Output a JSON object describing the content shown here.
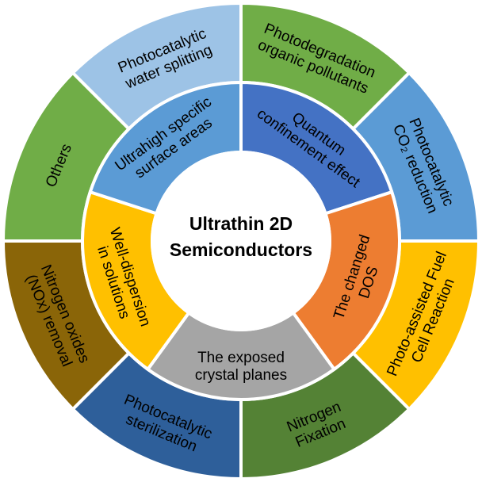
{
  "center": {
    "line1": "Ultrathin 2D",
    "line2": "Semiconductors"
  },
  "inner_ring": [
    {
      "lines": [
        "Quantum",
        "confinement effect"
      ],
      "color": "#4472c4"
    },
    {
      "lines": [
        "The changed",
        "DOS"
      ],
      "color": "#ed7d31"
    },
    {
      "lines": [
        "The exposed",
        "crystal planes"
      ],
      "color": "#a5a5a5"
    },
    {
      "lines": [
        "Well-dispersion",
        "in solutions"
      ],
      "color": "#ffc000"
    },
    {
      "lines": [
        "Ultrahigh specific",
        "surface areas"
      ],
      "color": "#5b9bd5"
    }
  ],
  "outer_ring": [
    {
      "lines": [
        "Photodegradation",
        "organic pollutants"
      ],
      "color": "#70ad47"
    },
    {
      "lines": [
        "Photocatalytic",
        "CO₂ reduction"
      ],
      "color": "#5b9bd5"
    },
    {
      "lines": [
        "Photo-assisted Fuel",
        "Cell Reaction"
      ],
      "color": "#ffc000"
    },
    {
      "lines": [
        "Nitrogen",
        "Fixation"
      ],
      "color": "#548235"
    },
    {
      "lines": [
        "Photocatalytic",
        "sterilization"
      ],
      "color": "#2e5f9a"
    },
    {
      "lines": [
        "Nitrogen oxides",
        "(NOx) removal"
      ],
      "color": "#8a6508"
    },
    {
      "lines": [
        "Others"
      ],
      "color": "#70ad47"
    },
    {
      "lines": [
        "Photocatalytic",
        "water splitting"
      ],
      "color": "#9dc3e6"
    }
  ]
}
